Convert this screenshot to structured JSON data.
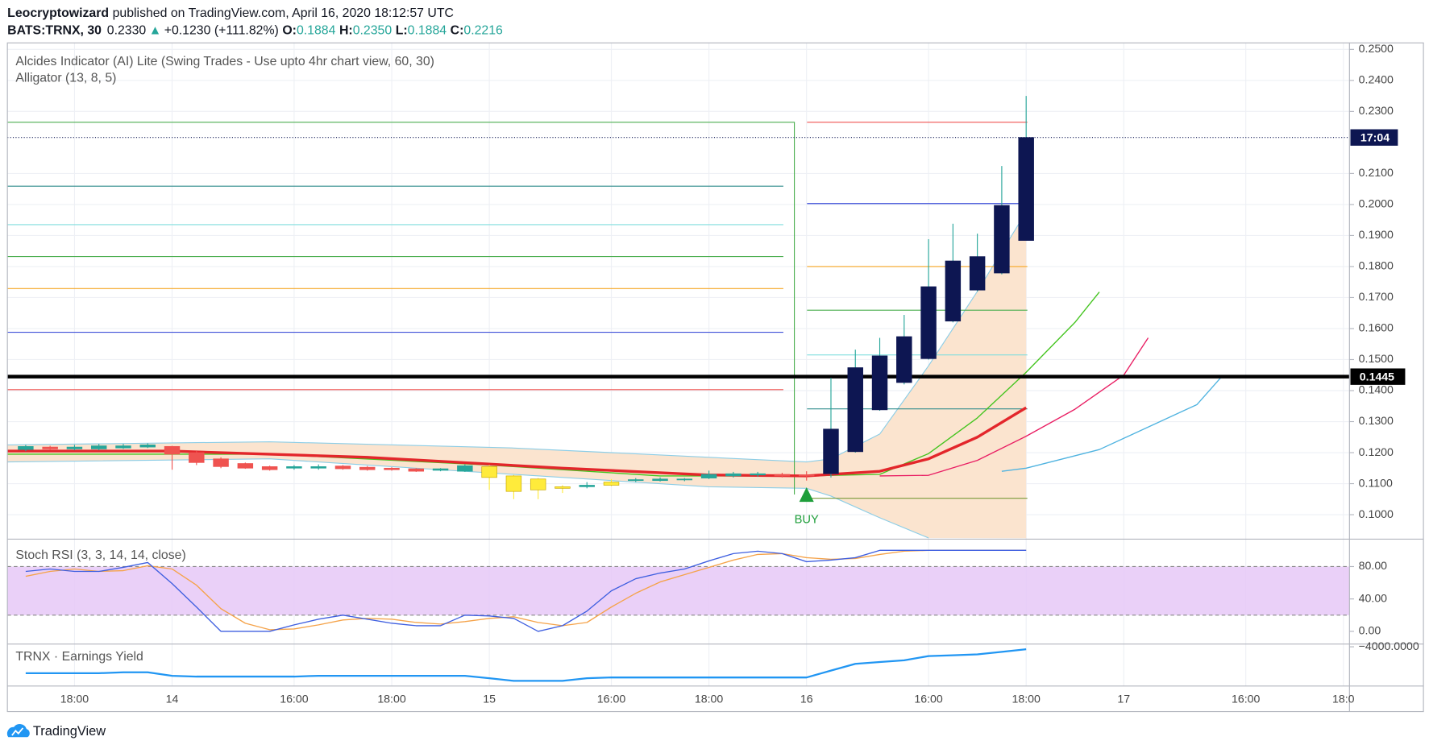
{
  "header": {
    "author": "Leocryptowizard",
    "published": "published on TradingView.com, April 16, 2020 18:12:57 UTC",
    "symbol": "BATS:TRNX, 30",
    "last": "0.2330",
    "arrow": "▲",
    "change": "+0.1230 (+111.82%)",
    "open_label": "O:",
    "open": "0.1884",
    "high_label": "H:",
    "high": "0.2350",
    "low_label": "L:",
    "low": "0.1884",
    "close_label": "C:",
    "close": "0.2216"
  },
  "footer": {
    "brand": "TradingView"
  },
  "chart_data": [
    {
      "type": "candlestick",
      "legend": [
        "Alcides Indicator (AI) Lite (Swing Trades - Use upto 4hr chart view, 60, 30)",
        "Alligator (13, 8, 5)"
      ],
      "xlim": [
        0,
        55
      ],
      "xticks": [
        {
          "value": 2.75,
          "label": "18:00"
        },
        {
          "value": 6.75,
          "label": "14"
        },
        {
          "value": 11.75,
          "label": "16:00"
        },
        {
          "value": 15.75,
          "label": "18:00"
        },
        {
          "value": 19.75,
          "label": "15"
        },
        {
          "value": 24.75,
          "label": "16:00"
        },
        {
          "value": 28.75,
          "label": "18:00"
        },
        {
          "value": 32.75,
          "label": "16"
        },
        {
          "value": 37.75,
          "label": "16:00"
        },
        {
          "value": 41.75,
          "label": "18:00"
        },
        {
          "value": 45.75,
          "label": "17"
        },
        {
          "value": 50.75,
          "label": "16:00"
        },
        {
          "value": 54.75,
          "label": "18:0"
        }
      ],
      "ylim": [
        0.0924,
        0.2521
      ],
      "yticks": [
        {
          "value": 0.1,
          "label": "0.1000"
        },
        {
          "value": 0.11,
          "label": "0.1100"
        },
        {
          "value": 0.12,
          "label": "0.1200"
        },
        {
          "value": 0.13,
          "label": "0.1300"
        },
        {
          "value": 0.14,
          "label": "0.1400"
        },
        {
          "value": 0.15,
          "label": "0.1500"
        },
        {
          "value": 0.16,
          "label": "0.1600"
        },
        {
          "value": 0.17,
          "label": "0.1700"
        },
        {
          "value": 0.18,
          "label": "0.1800"
        },
        {
          "value": 0.19,
          "label": "0.1900"
        },
        {
          "value": 0.2,
          "label": "0.2000"
        },
        {
          "value": 0.21,
          "label": "0.2100"
        },
        {
          "value": 0.23,
          "label": "0.2300"
        },
        {
          "value": 0.24,
          "label": "0.2400"
        },
        {
          "value": 0.25,
          "label": "0.2500"
        }
      ],
      "grid": true,
      "x": [
        0.75,
        1.75,
        2.75,
        3.75,
        4.75,
        5.75,
        6.75,
        7.75,
        8.75,
        9.75,
        10.75,
        11.75,
        12.75,
        13.75,
        14.75,
        15.75,
        16.75,
        17.75,
        18.75,
        19.75,
        20.75,
        21.75,
        22.75,
        23.75,
        24.75,
        25.75,
        26.75,
        27.75,
        28.75,
        29.75,
        30.75,
        31.75,
        32.75,
        33.75,
        34.75,
        35.75,
        36.75,
        37.75,
        38.75,
        39.75,
        40.75,
        41.75
      ],
      "open": [
        0.121,
        0.1218,
        0.1212,
        0.1212,
        0.1215,
        0.1218,
        0.122,
        0.12,
        0.118,
        0.1165,
        0.1155,
        0.115,
        0.115,
        0.1157,
        0.1153,
        0.115,
        0.1148,
        0.1143,
        0.114,
        0.1155,
        0.1125,
        0.1115,
        0.109,
        0.109,
        0.1095,
        0.111,
        0.111,
        0.1112,
        0.1118,
        0.1125,
        0.1128,
        0.113,
        0.1128,
        0.1132,
        0.1203,
        0.1338,
        0.1426,
        0.1503,
        0.1624,
        0.1724,
        0.1779,
        0.1884
      ],
      "high": [
        0.1225,
        0.1222,
        0.1225,
        0.1228,
        0.1228,
        0.123,
        0.1222,
        0.1205,
        0.1185,
        0.1168,
        0.1158,
        0.116,
        0.1162,
        0.116,
        0.1157,
        0.1153,
        0.115,
        0.115,
        0.1162,
        0.116,
        0.1128,
        0.1118,
        0.1095,
        0.1105,
        0.1115,
        0.1118,
        0.112,
        0.1118,
        0.1142,
        0.1138,
        0.1138,
        0.1135,
        0.114,
        0.1441,
        0.1532,
        0.157,
        0.1644,
        0.1888,
        0.1938,
        0.1906,
        0.2124,
        0.235
      ],
      "low": [
        0.1205,
        0.1208,
        0.1208,
        0.1208,
        0.1212,
        0.1215,
        0.1145,
        0.116,
        0.115,
        0.1148,
        0.1142,
        0.1145,
        0.1145,
        0.1145,
        0.1142,
        0.1142,
        0.1138,
        0.114,
        0.1138,
        0.108,
        0.105,
        0.105,
        0.107,
        0.1085,
        0.1092,
        0.1105,
        0.1107,
        0.1108,
        0.1115,
        0.112,
        0.1122,
        0.112,
        0.111,
        0.112,
        0.12,
        0.1335,
        0.142,
        0.15,
        0.162,
        0.172,
        0.1775,
        0.1884
      ],
      "close": [
        0.122,
        0.1212,
        0.1218,
        0.1222,
        0.1222,
        0.1225,
        0.1195,
        0.1168,
        0.1155,
        0.115,
        0.1145,
        0.1155,
        0.1155,
        0.1148,
        0.1145,
        0.1145,
        0.114,
        0.1148,
        0.1158,
        0.112,
        0.1075,
        0.108,
        0.1085,
        0.1095,
        0.1105,
        0.1113,
        0.1115,
        0.1115,
        0.113,
        0.1132,
        0.1132,
        0.1125,
        0.1125,
        0.1276,
        0.1474,
        0.1512,
        0.1574,
        0.1735,
        0.1818,
        0.1832,
        0.1997,
        0.2216
      ],
      "colors": [
        "#26a69a",
        "#ef5350",
        "#26a69a",
        "#26a69a",
        "#26a69a",
        "#26a69a",
        "#ef5350",
        "#ef5350",
        "#ef5350",
        "#ef5350",
        "#ef5350",
        "#26a69a",
        "#26a69a",
        "#ef5350",
        "#ef5350",
        "#ef5350",
        "#ef5350",
        "#26a69a",
        "#26a69a",
        "#ffeb3b",
        "#ffeb3b",
        "#ffeb3b",
        "#ffeb3b",
        "#26a69a",
        "#ffeb3b",
        "#26a69a",
        "#26a69a",
        "#26a69a",
        "#26a69a",
        "#26a69a",
        "#26a69a",
        "#ef5350",
        "#ef5350",
        "#0d1652",
        "#0d1652",
        "#0d1652",
        "#0d1652",
        "#0d1652",
        "#0d1652",
        "#0d1652",
        "#0d1652",
        "#0d1652"
      ],
      "countdown": "17:04",
      "price_line": {
        "value": 0.1445,
        "label": "0.1445",
        "color": "#000000"
      },
      "box": {
        "x": 32.25,
        "top": 0.2265,
        "bottom": 0.1065,
        "color": "#4caf50"
      },
      "levels": [
        {
          "value": 0.2059,
          "color": "#2e8b8b",
          "from": 0,
          "to": 31.8
        },
        {
          "value": 0.1935,
          "color": "#7fdede",
          "from": 0,
          "to": 31.8
        },
        {
          "value": 0.1832,
          "color": "#4caf50",
          "from": 0,
          "to": 31.8
        },
        {
          "value": 0.1729,
          "color": "#f5a623",
          "from": 0,
          "to": 31.8
        },
        {
          "value": 0.1588,
          "color": "#3f51d8",
          "from": 0,
          "to": 31.8
        },
        {
          "value": 0.1403,
          "color": "#ef5350",
          "from": 0,
          "to": 31.8
        },
        {
          "value": 0.2265,
          "color": "#ef5350",
          "from": 32.77,
          "to": 41.8
        },
        {
          "value": 0.2003,
          "color": "#3f51d8",
          "from": 32.77,
          "to": 41.8
        },
        {
          "value": 0.18,
          "color": "#f5a623",
          "from": 32.77,
          "to": 41.8
        },
        {
          "value": 0.1659,
          "color": "#4caf50",
          "from": 32.77,
          "to": 41.8
        },
        {
          "value": 0.1515,
          "color": "#7fdede",
          "from": 32.77,
          "to": 41.8
        },
        {
          "value": 0.1341,
          "color": "#2e8b8b",
          "from": 32.77,
          "to": 41.8
        },
        {
          "value": 0.1053,
          "color": "#7a9a3a",
          "from": 32.77,
          "to": 41.8
        }
      ],
      "band": {
        "color": "#8ccde6",
        "fill": "#fbe4cf",
        "upper": {
          "x": [
            0,
            10.75,
            20.75,
            28.75,
            32.75,
            33.75,
            35.75,
            37.75,
            39.75,
            41.75
          ],
          "values": [
            0.1225,
            0.1235,
            0.1215,
            0.1185,
            0.117,
            0.118,
            0.126,
            0.148,
            0.172,
            0.1976
          ]
        },
        "lower": {
          "x": [
            0,
            10.75,
            20.75,
            28.75,
            32.75,
            33.75,
            35.75,
            37.75
          ],
          "values": [
            0.117,
            0.118,
            0.113,
            0.109,
            0.1085,
            0.106,
            0.099,
            0.0925
          ]
        }
      },
      "lines": [
        {
          "color": "#4fb3e0",
          "width": 1.2,
          "x": [
            40.75,
            41.75,
            44.75,
            48.75,
            49.75
          ],
          "values": [
            0.114,
            0.115,
            0.121,
            0.1355,
            0.1444
          ]
        },
        {
          "color": "#e91e63",
          "width": 1.2,
          "x": [
            35.75,
            37.75,
            39.75,
            41.75,
            43.75,
            45.75,
            46.75
          ],
          "values": [
            0.1125,
            0.1127,
            0.1175,
            0.1253,
            0.134,
            0.145,
            0.157
          ]
        },
        {
          "color": "#43c41e",
          "width": 1.2,
          "x": [
            0,
            10.75,
            19.75,
            26.75,
            32.75,
            35.75,
            37.75,
            39.75,
            41.75,
            43.75,
            44.75
          ],
          "values": [
            0.1195,
            0.1195,
            0.116,
            0.1125,
            0.1125,
            0.113,
            0.1197,
            0.1312,
            0.1459,
            0.162,
            0.1718
          ]
        },
        {
          "color": "#e3262b",
          "width": 3,
          "x": [
            0,
            6.75,
            14.75,
            22.75,
            28.75,
            32.75,
            35.75,
            37.75,
            39.75,
            41.75
          ],
          "values": [
            0.1205,
            0.1205,
            0.1185,
            0.115,
            0.1128,
            0.1125,
            0.114,
            0.118,
            0.125,
            0.1345
          ]
        }
      ],
      "signal": {
        "label": "BUY",
        "x": 32.75,
        "value": 0.1065,
        "color": "#1e9e3a"
      }
    },
    {
      "type": "line",
      "legend": "Stoch RSI (3, 3, 14, 14, close)",
      "ylim": [
        -14.6,
        112.7
      ],
      "yticks": [
        {
          "value": 0,
          "label": "0.00"
        },
        {
          "value": 40,
          "label": "40.00"
        },
        {
          "value": 80,
          "label": "80.00"
        }
      ],
      "band": {
        "range": [
          20,
          80
        ],
        "color": "#e6c8f7"
      },
      "series": [
        {
          "color": "#f5a34a",
          "values": [
            68,
            74,
            77,
            74,
            75,
            81,
            77,
            57,
            28,
            10,
            2,
            3,
            8,
            14,
            16,
            15,
            11,
            9,
            12,
            16,
            18,
            11,
            7,
            11,
            30,
            47,
            61,
            70,
            79,
            88,
            95,
            96,
            91,
            89,
            90,
            95,
            99,
            100,
            100,
            100,
            100,
            100
          ]
        },
        {
          "color": "#3f5fe0",
          "values": [
            74,
            77,
            74,
            74,
            79,
            85,
            59,
            30,
            0,
            0,
            0,
            8,
            15,
            20,
            15,
            10,
            7,
            7,
            20,
            19,
            16,
            0,
            7,
            25,
            50,
            65,
            72,
            77,
            87,
            96,
            99,
            96,
            86,
            88,
            91,
            100,
            100,
            100,
            100,
            100,
            100,
            100
          ]
        }
      ]
    },
    {
      "type": "line",
      "legend": "TRNX · Earnings Yield",
      "ylim": [
        -8300,
        -3800
      ],
      "yticks": [
        {
          "value": -4000,
          "label": "−4000.0000"
        }
      ],
      "series": [
        {
          "color": "#2196f3",
          "values": [
            -6960,
            -6960,
            -6960,
            -6960,
            -6860,
            -6860,
            -7250,
            -7340,
            -7340,
            -7340,
            -7340,
            -7340,
            -7250,
            -7250,
            -7250,
            -7250,
            -7250,
            -7250,
            -7250,
            -7530,
            -7820,
            -7820,
            -7820,
            -7530,
            -7440,
            -7440,
            -7440,
            -7440,
            -7440,
            -7440,
            -7440,
            -7440,
            -7440,
            -6670,
            -5910,
            -5710,
            -5520,
            -5040,
            -4950,
            -4850,
            -4570,
            -4280
          ]
        }
      ]
    }
  ]
}
